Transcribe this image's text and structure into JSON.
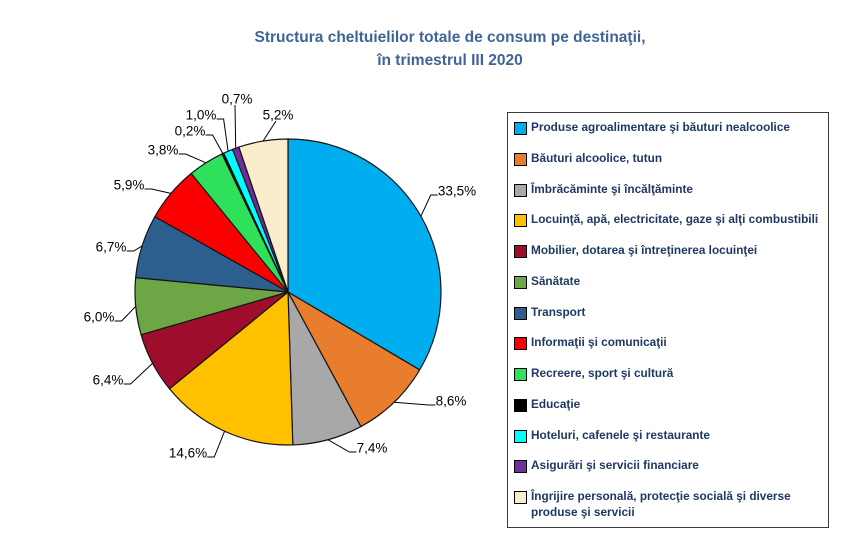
{
  "page_title": {
    "line1": "Structura cheltuielilor totale de consum pe destinaţii,",
    "line2": "în trimestrul III 2020"
  },
  "chart_data": {
    "type": "pie",
    "title": "Structura cheltuielilor totale de consum pe destinaţii, în trimestrul III 2020",
    "start_angle_deg": 0,
    "direction": "clockwise",
    "legend_position": "right",
    "total": 100,
    "slices": [
      {
        "label": "Produse agroalimentare şi băuturi nealcoolice",
        "value": 33.5,
        "display": "33,5%",
        "color": "#00AEEF"
      },
      {
        "label": "Băuturi alcoolice, tutun",
        "value": 8.6,
        "display": "8,6%",
        "color": "#E87E2D"
      },
      {
        "label": "Îmbrăcăminte şi încălţăminte",
        "value": 7.4,
        "display": "7,4%",
        "color": "#A8A8A8"
      },
      {
        "label": "Locuinţă, apă, electricitate, gaze şi alţi combustibili",
        "value": 14.6,
        "display": "14,6%",
        "color": "#FFC000"
      },
      {
        "label": "Mobilier, dotarea şi întreţinerea locuinţei",
        "value": 6.4,
        "display": "6,4%",
        "color": "#9E0E2C"
      },
      {
        "label": "Sănătate",
        "value": 6.0,
        "display": "6,0%",
        "color": "#6DA644"
      },
      {
        "label": "Transport",
        "value": 6.7,
        "display": "6,7%",
        "color": "#2C5F8D"
      },
      {
        "label": "Informaţii şi comunicaţii",
        "value": 5.9,
        "display": "5,9%",
        "color": "#FB0000"
      },
      {
        "label": "Recreere, sport şi cultură",
        "value": 3.8,
        "display": "3,8%",
        "color": "#2EE05A"
      },
      {
        "label": "Educaţie",
        "value": 0.2,
        "display": "0,2%",
        "color": "#000000"
      },
      {
        "label": "Hoteluri, cafenele şi restaurante",
        "value": 1.0,
        "display": "1,0%",
        "color": "#00FFFF"
      },
      {
        "label": "Asigurări şi servicii financiare",
        "value": 0.7,
        "display": "0,7%",
        "color": "#6C2F9B"
      },
      {
        "label": "Îngrijire personală, protecţie socială şi diverse produse şi servicii",
        "value": 5.2,
        "display": "5,2%",
        "color": "#F9EDCB"
      }
    ]
  }
}
